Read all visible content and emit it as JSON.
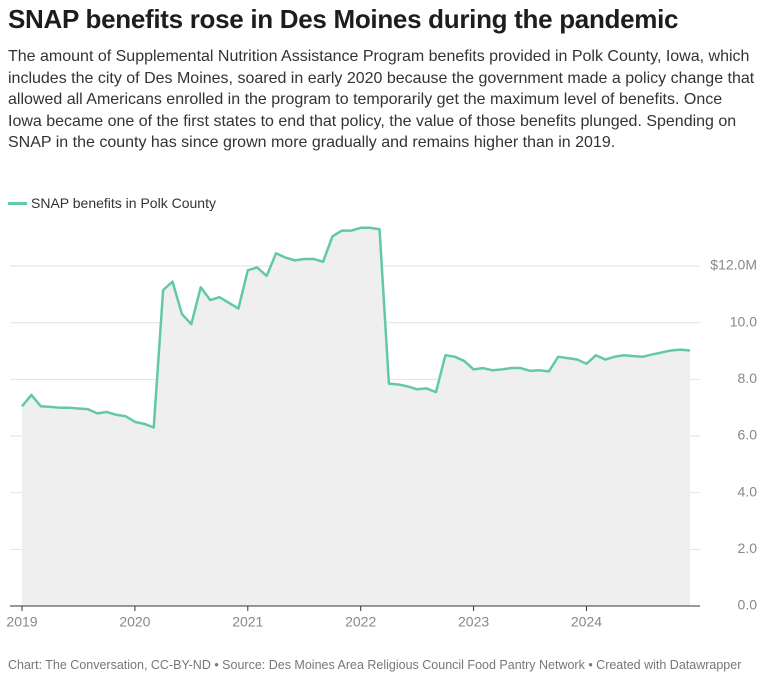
{
  "chart_data": {
    "type": "line",
    "title": "SNAP benefits rose in Des Moines during the pandemic",
    "subtitle": "The amount of Supplemental Nutrition Assistance Program benefits provided in Polk County, Iowa, which includes the city of Des Moines, soared in early 2020 because the government made a policy change that allowed all Americans enrolled in the program to temporarily get the maximum level of benefits. Once Iowa became one of the first states to end that policy, the value of those benefits plunged. Spending on SNAP in the county has since grown more gradually and remains higher than in 2019.",
    "footer": "Chart: The Conversation, CC-BY-ND • Source: Des Moines Area Religious Council Food Pantry Network • Created with Datawrapper",
    "x": [
      2019,
      2019.083,
      2019.167,
      2019.25,
      2019.333,
      2019.417,
      2019.5,
      2019.583,
      2019.667,
      2019.75,
      2019.833,
      2019.917,
      2020,
      2020.083,
      2020.167,
      2020.25,
      2020.333,
      2020.417,
      2020.5,
      2020.583,
      2020.667,
      2020.75,
      2020.833,
      2020.917,
      2021,
      2021.083,
      2021.167,
      2021.25,
      2021.333,
      2021.417,
      2021.5,
      2021.583,
      2021.667,
      2021.75,
      2021.833,
      2021.917,
      2022,
      2022.083,
      2022.167,
      2022.25,
      2022.333,
      2022.417,
      2022.5,
      2022.583,
      2022.667,
      2022.75,
      2022.833,
      2022.917,
      2023,
      2023.083,
      2023.167,
      2023.25,
      2023.333,
      2023.417,
      2023.5,
      2023.583,
      2023.667,
      2023.75,
      2023.833,
      2023.917,
      2024,
      2024.083,
      2024.167,
      2024.25,
      2024.333,
      2024.417,
      2024.5,
      2024.583,
      2024.667,
      2024.75,
      2024.833,
      2024.917
    ],
    "series": [
      {
        "name": "SNAP benefits in Polk County",
        "color": "#62c9a6",
        "values": [
          7.05,
          7.45,
          7.05,
          7.03,
          7.0,
          7.0,
          6.97,
          6.95,
          6.8,
          6.85,
          6.75,
          6.7,
          6.5,
          6.43,
          6.3,
          11.15,
          11.45,
          10.3,
          9.95,
          11.25,
          10.8,
          10.9,
          10.7,
          10.5,
          11.85,
          11.95,
          11.65,
          12.45,
          12.3,
          12.2,
          12.25,
          12.25,
          12.15,
          13.05,
          13.25,
          13.25,
          13.35,
          13.35,
          13.3,
          7.85,
          7.82,
          7.75,
          7.65,
          7.68,
          7.55,
          8.85,
          8.8,
          8.65,
          8.35,
          8.4,
          8.32,
          8.35,
          8.4,
          8.4,
          8.3,
          8.32,
          8.28,
          8.8,
          8.75,
          8.7,
          8.55,
          8.85,
          8.7,
          8.8,
          8.85,
          8.82,
          8.8,
          8.88,
          8.95,
          9.02,
          9.05,
          9.02
        ]
      }
    ],
    "xlim": [
      2019,
      2024.917
    ],
    "xticks": [
      2019,
      2020,
      2021,
      2022,
      2023,
      2024
    ],
    "ylim": [
      0,
      13.4
    ],
    "yticks": [
      {
        "value": 0,
        "label": "0.0"
      },
      {
        "value": 2,
        "label": "2.0"
      },
      {
        "value": 4,
        "label": "4.0"
      },
      {
        "value": 6,
        "label": "6.0"
      },
      {
        "value": 8,
        "label": "8.0"
      },
      {
        "value": 10,
        "label": "10.0"
      },
      {
        "value": 12,
        "label": "$12.0M"
      }
    ],
    "grid": true,
    "area_fill": "#efefef"
  }
}
